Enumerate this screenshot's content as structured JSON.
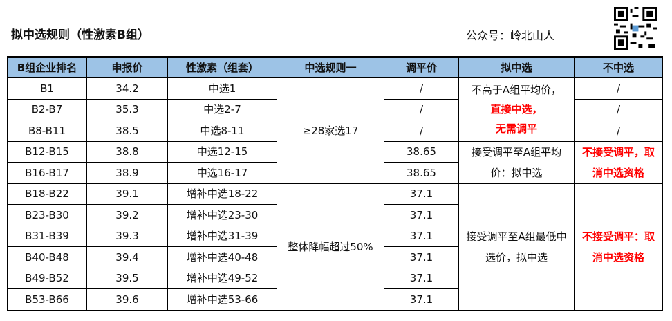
{
  "title": "拟中选规则（性激素B组）",
  "account": "公众号：岭北山人",
  "headers": [
    "B组企业排名",
    "申报价",
    "性激素（组套）",
    "中选规则一",
    "调平价",
    "拟中选",
    "不中选"
  ],
  "rows": [
    {
      "rank": "B1",
      "price": "34.2",
      "group": "中选1",
      "adj": "/",
      "no": "/"
    },
    {
      "rank": "B2-B7",
      "price": "35.3",
      "group": "中选2-7",
      "adj": "/",
      "no": "/"
    },
    {
      "rank": "B8-B11",
      "price": "38.5",
      "group": "中选8-11",
      "adj": "/",
      "no": "/"
    },
    {
      "rank": "B12-B15",
      "price": "38.8",
      "group": "中选12-15",
      "adj": "38.65"
    },
    {
      "rank": "B16-B17",
      "price": "38.9",
      "group": "中选16-17",
      "adj": "38.65"
    },
    {
      "rank": "B18-B22",
      "price": "39.1",
      "group": "增补中选18-22",
      "adj": "37.1"
    },
    {
      "rank": "B23-B30",
      "price": "39.2",
      "group": "增补中选23-30",
      "adj": "37.1"
    },
    {
      "rank": "B31-B39",
      "price": "39.3",
      "group": "增补中选31-39",
      "adj": "37.1"
    },
    {
      "rank": "B40-B48",
      "price": "39.4",
      "group": "增补中选40-48",
      "adj": "37.1"
    },
    {
      "rank": "B49-B52",
      "price": "39.5",
      "group": "增补中选49-52",
      "adj": "37.1"
    },
    {
      "rank": "B53-B66",
      "price": "39.6",
      "group": "增补中选53-66",
      "adj": "37.1"
    }
  ],
  "rule1": [
    "≥28家选17",
    "整体降幅超过50%"
  ],
  "select": {
    "a_line1": "不高于A组平均价，",
    "a_line2": "直接中选，",
    "a_line3": "无需调平",
    "b": "接受调平至A组平均价：拟中选",
    "c": "接受调平至A组最低中选价，拟中选"
  },
  "reject": {
    "b": "不接受调平，取消中选资格",
    "c": "不接受调平：取消中选资格"
  },
  "colors": {
    "header_bg": "#9dc3e6",
    "highlight": "#ff0000"
  }
}
